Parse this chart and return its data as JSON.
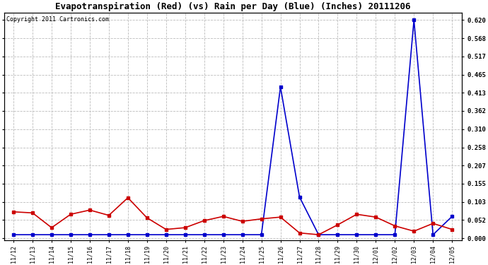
{
  "title": "Evapotranspiration (Red) (vs) Rain per Day (Blue) (Inches) 20111206",
  "copyright": "Copyright 2011 Cartronics.com",
  "labels": [
    "11/12",
    "11/13",
    "11/14",
    "11/15",
    "11/16",
    "11/17",
    "11/18",
    "11/19",
    "11/20",
    "11/21",
    "11/22",
    "11/23",
    "11/24",
    "11/25",
    "11/26",
    "11/27",
    "11/28",
    "11/29",
    "11/30",
    "12/01",
    "12/02",
    "12/03",
    "12/04",
    "12/05"
  ],
  "red_et": [
    0.075,
    0.072,
    0.03,
    0.068,
    0.08,
    0.065,
    0.115,
    0.058,
    0.025,
    0.03,
    0.05,
    0.062,
    0.048,
    0.055,
    0.06,
    0.015,
    0.01,
    0.038,
    0.068,
    0.06,
    0.035,
    0.02,
    0.042,
    0.025
  ],
  "blue_rain": [
    0.01,
    0.01,
    0.01,
    0.01,
    0.01,
    0.01,
    0.01,
    0.01,
    0.01,
    0.01,
    0.01,
    0.01,
    0.01,
    0.01,
    0.43,
    0.117,
    0.01,
    0.01,
    0.01,
    0.01,
    0.01,
    0.62,
    0.01,
    0.062
  ],
  "yticks": [
    0.0,
    0.052,
    0.103,
    0.155,
    0.207,
    0.258,
    0.31,
    0.362,
    0.413,
    0.465,
    0.517,
    0.568,
    0.62
  ],
  "ymax": 0.64,
  "red_color": "#cc0000",
  "blue_color": "#0000cc",
  "bg_color": "#ffffff",
  "grid_color": "#bbbbbb",
  "title_fontsize": 9,
  "copyright_fontsize": 6,
  "tick_fontsize": 6.5,
  "xtick_fontsize": 6
}
